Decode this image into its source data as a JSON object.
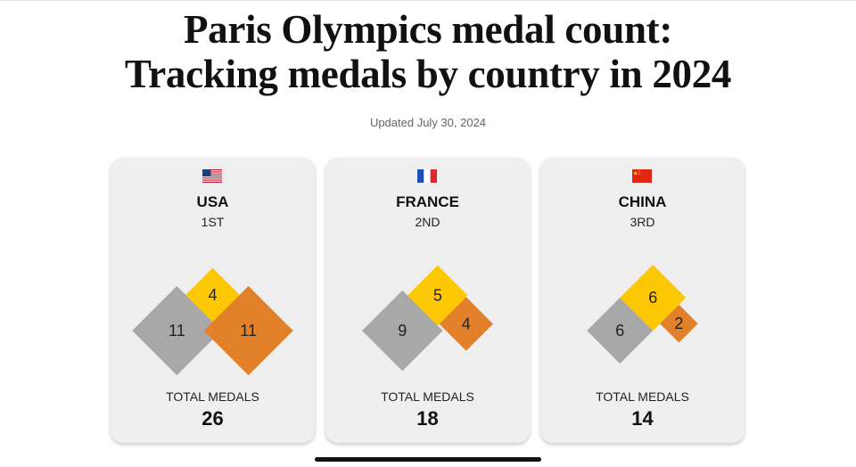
{
  "header": {
    "title_line1": "Paris Olympics medal count:",
    "title_line2": "Tracking medals by country in 2024",
    "updated": "Updated July 30, 2024"
  },
  "colors": {
    "gold": "#fcc803",
    "silver": "#a8a8a8",
    "bronze": "#e3812b",
    "card_bg": "#efefef"
  },
  "total_label": "TOTAL MEDALS",
  "countries": [
    {
      "name": "USA",
      "rank": "1ST",
      "flag_icon": "usa-flag-icon",
      "gold": 4,
      "silver": 11,
      "bronze": 11,
      "total": 26
    },
    {
      "name": "FRANCE",
      "rank": "2ND",
      "flag_icon": "france-flag-icon",
      "gold": 5,
      "silver": 9,
      "bronze": 4,
      "total": 18
    },
    {
      "name": "CHINA",
      "rank": "3RD",
      "flag_icon": "china-flag-icon",
      "gold": 6,
      "silver": 6,
      "bronze": 2,
      "total": 14
    }
  ]
}
